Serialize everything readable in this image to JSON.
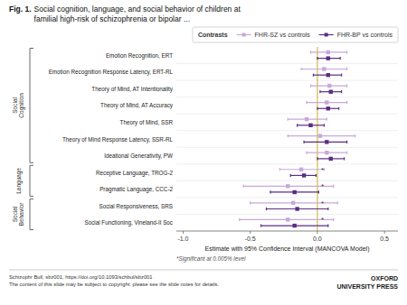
{
  "chart_data": {
    "type": "forest",
    "title": "Fig. 1.",
    "subtitle": "Social cognition, language, and social behavior of children at\nfamilial high-risk of schizophrenia or bipolar ...",
    "categories": [
      "Emotion Recognition, ERT",
      "Emotion Recognition Response Latency, ERT-RL",
      "Theory of Mind, AT Intentionality",
      "Theory of Mind, AT Accuracy",
      "Theory of Mind, SSR",
      "Theory of Mind Response Latency, SSR-RL",
      "Ideational Generativity, PW",
      "Receptive Language, TROG-2",
      "Pragmatic Language, CCC-2",
      "Social Responsiveness, SRS",
      "Social Functioning, Vineland-II Soc"
    ],
    "series": [
      {
        "name": "FHR-SZ vs controls",
        "color": "#c8a8d8",
        "marker": "square",
        "values": [
          0.08,
          0.05,
          0.09,
          0.07,
          -0.08,
          0.02,
          0.07,
          -0.12,
          -0.22,
          -0.18,
          -0.22
        ],
        "ci_low": [
          -0.05,
          -0.12,
          -0.05,
          -0.08,
          -0.22,
          -0.22,
          -0.08,
          -0.28,
          -0.55,
          -0.5,
          -0.58
        ],
        "ci_high": [
          0.22,
          0.22,
          0.22,
          0.22,
          0.07,
          0.28,
          0.22,
          0.05,
          0.12,
          0.15,
          0.12
        ]
      },
      {
        "name": "FHR-BP vs controls",
        "color": "#5b2d82",
        "marker": "square",
        "values": [
          0.08,
          0.08,
          0.1,
          0.08,
          -0.05,
          0.07,
          0.1,
          -0.1,
          -0.17,
          -0.15,
          -0.17
        ],
        "ci_low": [
          0.0,
          -0.03,
          0.02,
          0.0,
          -0.15,
          -0.1,
          0.0,
          -0.2,
          -0.35,
          -0.38,
          -0.42
        ],
        "ci_high": [
          0.17,
          0.18,
          0.18,
          0.16,
          0.05,
          0.22,
          0.2,
          -0.01,
          0.01,
          0.08,
          0.08
        ]
      }
    ],
    "sections": [
      {
        "label": "Social\nCognition",
        "row_start": 0,
        "row_end": 6
      },
      {
        "label": "Language",
        "row_start": 7,
        "row_end": 8
      },
      {
        "label": "Social\nBehavior",
        "row_start": 9,
        "row_end": 10
      }
    ],
    "xlim": [
      -1.05,
      0.6
    ],
    "xticks": [
      {
        "value": -1,
        "label": "-1.0"
      },
      {
        "value": -0.5,
        "label": "-0.5"
      },
      {
        "value": 0,
        "label": "0.0"
      },
      {
        "value": 0.5,
        "label": "0.5"
      }
    ],
    "xlabel": "Estimate with 95% Confidence Interval (MANCOVA Model)",
    "reference_line": {
      "x": 0,
      "color": "#d4b84a"
    },
    "annotations": [
      {
        "text": "*",
        "category": "Receptive Language, TROG-2"
      },
      {
        "text": "*",
        "category": "Pragmatic Language, CCC-2"
      },
      {
        "text": "*",
        "category": "Social Responsiveness, SRS"
      },
      {
        "text": "*",
        "category": "Social Functioning, Vineland-II Soc"
      }
    ],
    "legend": "top",
    "legend_title": "Contrasts",
    "grid": false,
    "footnote": "*Significant at 0.005% level",
    "source": "Schizophr Bull, sbz001, https://doi.org/10.1093/schbul/sbz001\nThe content of this slide may be subject to copyright: please see the slide notes for details.",
    "publisher": "OXFORD\nUNIVERSITY PRESS"
  }
}
